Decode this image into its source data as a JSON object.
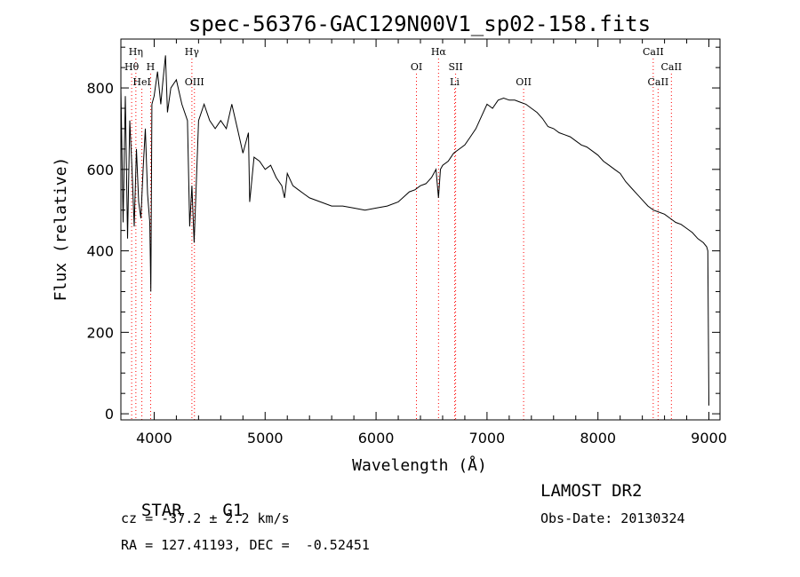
{
  "chart_data": {
    "type": "line",
    "title": "spec-56376-GAC129N00V1_sp02-158.fits",
    "xlabel": "Wavelength (Å)",
    "ylabel": "Flux (relative)",
    "xlim": [
      3700,
      9100
    ],
    "ylim": [
      -15,
      920
    ],
    "x_ticks": [
      4000,
      5000,
      6000,
      7000,
      8000,
      9000
    ],
    "y_ticks": [
      0,
      200,
      400,
      600,
      800
    ],
    "grid": false,
    "line_color": "#000000",
    "marker_color": "#ff0000",
    "series": [
      {
        "x": [
          3700,
          3720,
          3740,
          3760,
          3780,
          3800,
          3820,
          3840,
          3860,
          3880,
          3900,
          3920,
          3940,
          3960,
          3970,
          3980,
          4000,
          4030,
          4060,
          4080,
          4102,
          4120,
          4150,
          4200,
          4250,
          4300,
          4320,
          4340,
          4360,
          4400,
          4450,
          4500,
          4550,
          4600,
          4650,
          4700,
          4750,
          4800,
          4850,
          4861,
          4900,
          4950,
          5000,
          5050,
          5100,
          5150,
          5175,
          5200,
          5250,
          5300,
          5350,
          5400,
          5500,
          5600,
          5700,
          5800,
          5900,
          6000,
          6100,
          6200,
          6300,
          6350,
          6400,
          6450,
          6500,
          6520,
          6540,
          6563,
          6580,
          6600,
          6650,
          6700,
          6750,
          6800,
          6850,
          6900,
          6950,
          7000,
          7050,
          7100,
          7150,
          7200,
          7250,
          7300,
          7350,
          7400,
          7450,
          7500,
          7550,
          7600,
          7650,
          7700,
          7750,
          7800,
          7850,
          7900,
          7950,
          8000,
          8050,
          8100,
          8150,
          8200,
          8250,
          8300,
          8350,
          8400,
          8450,
          8500,
          8550,
          8600,
          8650,
          8700,
          8750,
          8800,
          8850,
          8900,
          8950,
          8980,
          8990,
          9000
        ],
        "y": [
          800,
          470,
          780,
          430,
          720,
          600,
          460,
          650,
          520,
          480,
          600,
          700,
          540,
          470,
          300,
          760,
          780,
          840,
          760,
          820,
          880,
          740,
          800,
          820,
          760,
          720,
          460,
          560,
          420,
          720,
          760,
          720,
          700,
          720,
          700,
          760,
          700,
          640,
          690,
          520,
          630,
          620,
          600,
          610,
          580,
          560,
          530,
          590,
          560,
          550,
          540,
          530,
          520,
          510,
          510,
          505,
          500,
          505,
          510,
          520,
          545,
          550,
          560,
          565,
          580,
          590,
          600,
          530,
          600,
          610,
          620,
          640,
          650,
          660,
          680,
          700,
          730,
          760,
          750,
          770,
          775,
          770,
          770,
          765,
          760,
          750,
          740,
          725,
          705,
          700,
          690,
          685,
          680,
          670,
          660,
          655,
          645,
          635,
          620,
          610,
          600,
          590,
          570,
          555,
          540,
          525,
          510,
          500,
          495,
          490,
          480,
          470,
          465,
          455,
          445,
          430,
          420,
          410,
          400,
          20
        ],
        "name": ""
      }
    ],
    "line_markers": [
      {
        "label": "Hη",
        "x": 3835,
        "row": 0
      },
      {
        "label": "Hθ",
        "x": 3797,
        "row": 1
      },
      {
        "label": "H",
        "x": 3968,
        "row": 1
      },
      {
        "label": "HeI",
        "x": 3889,
        "row": 2
      },
      {
        "label": "Hγ",
        "x": 4340,
        "row": 0
      },
      {
        "label": "OIII",
        "x": 4363,
        "row": 2
      },
      {
        "label": "Hα",
        "x": 6563,
        "row": 0
      },
      {
        "label": "OI",
        "x": 6364,
        "row": 1
      },
      {
        "label": "SII",
        "x": 6717,
        "row": 1
      },
      {
        "label": "Li",
        "x": 6708,
        "row": 2
      },
      {
        "label": "OII",
        "x": 7330,
        "row": 2
      },
      {
        "label": "CaII",
        "x": 8498,
        "row": 0
      },
      {
        "label": "CaII",
        "x": 8662,
        "row": 1
      },
      {
        "label": "CaII",
        "x": 8542,
        "row": 2
      }
    ]
  },
  "info": {
    "object_class": "STAR",
    "subclass": "G1",
    "survey": "LAMOST DR2",
    "velocity": "cz = -37.2 ± 2.2 km/s",
    "obs_date": "Obs-Date: 20130324",
    "coords": "RA = 127.41193, DEC =  -0.52451"
  }
}
